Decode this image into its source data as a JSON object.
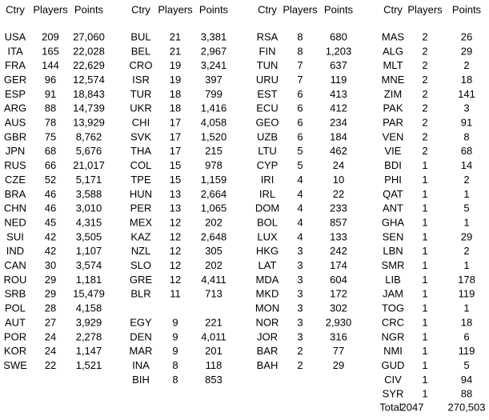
{
  "tables": [
    {
      "header": [
        "Ctry",
        "Players",
        "Points"
      ],
      "sections": [
        [
          [
            "USA",
            "209",
            "27,060"
          ],
          [
            "ITA",
            "165",
            "22,028"
          ],
          [
            "FRA",
            "144",
            "22,629"
          ],
          [
            "GER",
            "96",
            "12,574"
          ],
          [
            "ESP",
            "91",
            "18,843"
          ],
          [
            "ARG",
            "88",
            "14,739"
          ],
          [
            "AUS",
            "78",
            "13,929"
          ],
          [
            "GBR",
            "75",
            "8,762"
          ],
          [
            "JPN",
            "68",
            "5,676"
          ],
          [
            "RUS",
            "66",
            "21,017"
          ],
          [
            "CZE",
            "52",
            "5,171"
          ],
          [
            "BRA",
            "46",
            "3,588"
          ],
          [
            "CHN",
            "46",
            "3,010"
          ],
          [
            "NED",
            "45",
            "4,315"
          ],
          [
            "SUI",
            "42",
            "3,505"
          ],
          [
            "IND",
            "42",
            "1,107"
          ],
          [
            "CAN",
            "30",
            "3,574"
          ],
          [
            "ROU",
            "29",
            "1,181"
          ],
          [
            "SRB",
            "29",
            "15,479"
          ],
          [
            "POL",
            "28",
            "4,158"
          ],
          [
            "AUT",
            "27",
            "3,929"
          ],
          [
            "POR",
            "24",
            "2,278"
          ],
          [
            "KOR",
            "24",
            "1,147"
          ],
          [
            "SWE",
            "22",
            "1,521"
          ]
        ]
      ]
    },
    {
      "header": [
        "Ctry",
        "Players",
        "Points"
      ],
      "sections": [
        [
          [
            "BUL",
            "21",
            "3,381"
          ],
          [
            "BEL",
            "21",
            "2,967"
          ],
          [
            "CRO",
            "19",
            "3,241"
          ],
          [
            "ISR",
            "19",
            "397"
          ],
          [
            "TUR",
            "18",
            "799"
          ],
          [
            "UKR",
            "18",
            "1,416"
          ],
          [
            "CHI",
            "17",
            "4,058"
          ],
          [
            "SVK",
            "17",
            "1,520"
          ],
          [
            "THA",
            "17",
            "215"
          ],
          [
            "COL",
            "15",
            "978"
          ],
          [
            "TPE",
            "15",
            "1,159"
          ],
          [
            "HUN",
            "13",
            "2,664"
          ],
          [
            "PER",
            "13",
            "1,065"
          ],
          [
            "MEX",
            "12",
            "202"
          ],
          [
            "KAZ",
            "12",
            "2,648"
          ],
          [
            "NZL",
            "12",
            "305"
          ],
          [
            "SLO",
            "12",
            "202"
          ],
          [
            "GRE",
            "12",
            "4,411"
          ],
          [
            "BLR",
            "11",
            "713"
          ]
        ],
        [
          [
            "EGY",
            "9",
            "221"
          ],
          [
            "DEN",
            "9",
            "4,011"
          ],
          [
            "MAR",
            "9",
            "201"
          ],
          [
            "INA",
            "8",
            "118"
          ],
          [
            "BIH",
            "8",
            "853"
          ]
        ]
      ]
    },
    {
      "header": [
        "Ctry",
        "Players",
        "Points"
      ],
      "sections": [
        [
          [
            "RSA",
            "8",
            "680"
          ],
          [
            "FIN",
            "8",
            "1,203"
          ],
          [
            "TUN",
            "7",
            "637"
          ],
          [
            "URU",
            "7",
            "119"
          ],
          [
            "EST",
            "6",
            "413"
          ],
          [
            "ECU",
            "6",
            "412"
          ],
          [
            "GEO",
            "6",
            "234"
          ],
          [
            "UZB",
            "6",
            "184"
          ],
          [
            "LTU",
            "5",
            "462"
          ],
          [
            "CYP",
            "5",
            "24"
          ],
          [
            "IRI",
            "4",
            "10"
          ],
          [
            "IRL",
            "4",
            "22"
          ],
          [
            "DOM",
            "4",
            "233"
          ],
          [
            "BOL",
            "4",
            "857"
          ],
          [
            "LUX",
            "4",
            "133"
          ],
          [
            "HKG",
            "3",
            "242"
          ],
          [
            "LAT",
            "3",
            "174"
          ],
          [
            "MDA",
            "3",
            "604"
          ],
          [
            "MKD",
            "3",
            "172"
          ],
          [
            "MON",
            "3",
            "302"
          ],
          [
            "NOR",
            "3",
            "2,930"
          ],
          [
            "JOR",
            "3",
            "316"
          ],
          [
            "BAR",
            "2",
            "77"
          ],
          [
            "BAH",
            "2",
            "29"
          ]
        ]
      ]
    },
    {
      "header": [
        "Ctry",
        "Players",
        "Points"
      ],
      "sections": [
        [
          [
            "MAS",
            "2",
            "26"
          ],
          [
            "ALG",
            "2",
            "29"
          ],
          [
            "MLT",
            "2",
            "2"
          ],
          [
            "MNE",
            "2",
            "18"
          ],
          [
            "ZIM",
            "2",
            "141"
          ],
          [
            "PAK",
            "2",
            "3"
          ],
          [
            "PAR",
            "2",
            "91"
          ],
          [
            "VEN",
            "2",
            "8"
          ],
          [
            "VIE",
            "2",
            "68"
          ],
          [
            "BDI",
            "1",
            "14"
          ],
          [
            "PHI",
            "1",
            "2"
          ],
          [
            "QAT",
            "1",
            "1"
          ],
          [
            "ANT",
            "1",
            "5"
          ],
          [
            "GHA",
            "1",
            "1"
          ],
          [
            "SEN",
            "1",
            "29"
          ],
          [
            "LBN",
            "1",
            "2"
          ],
          [
            "SMR",
            "1",
            "1"
          ],
          [
            "LIB",
            "1",
            "178"
          ],
          [
            "JAM",
            "1",
            "119"
          ],
          [
            "TOG",
            "1",
            "1"
          ],
          [
            "CRC",
            "1",
            "18"
          ],
          [
            "NGR",
            "1",
            "6"
          ],
          [
            "NMI",
            "1",
            "119"
          ],
          [
            "GUD",
            "1",
            "5"
          ],
          [
            "CIV",
            "1",
            "94"
          ],
          [
            "SYR",
            "1",
            "88"
          ]
        ]
      ],
      "total": [
        "Total",
        "2047",
        "270,503"
      ]
    }
  ]
}
